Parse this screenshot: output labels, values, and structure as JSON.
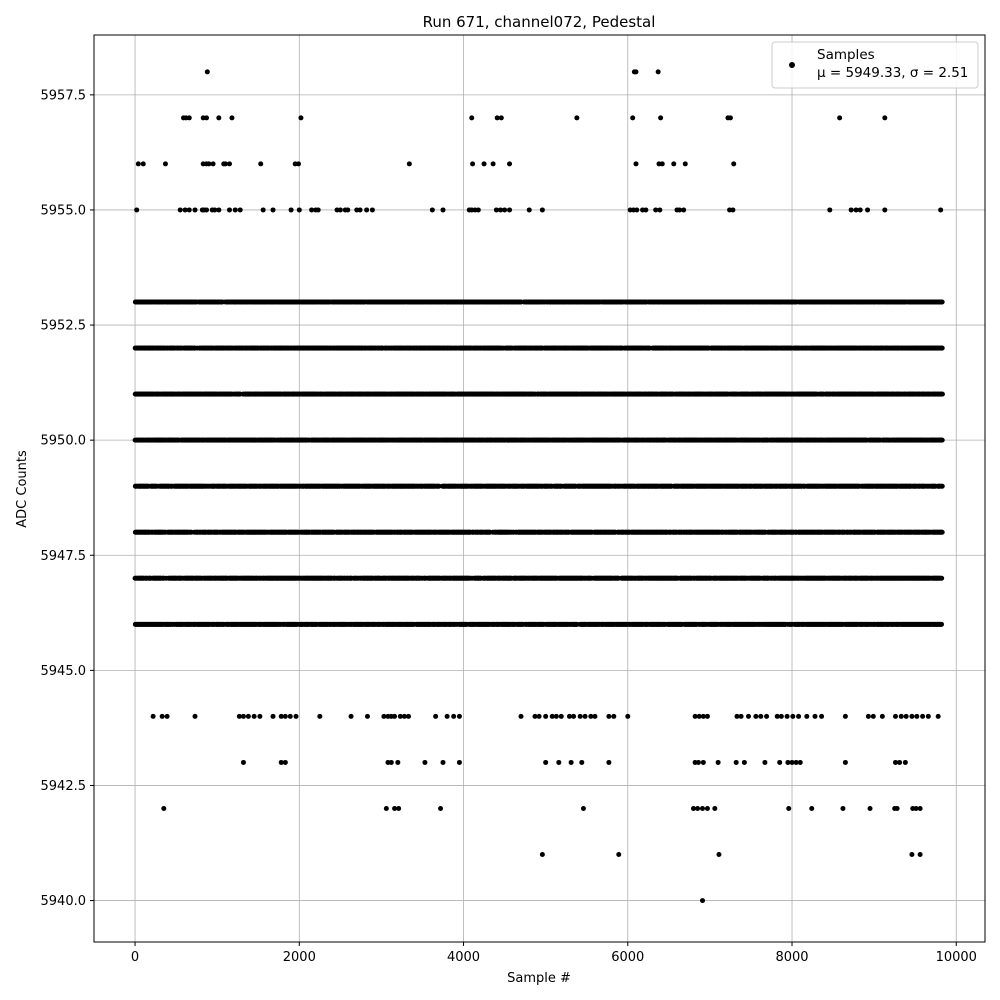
{
  "chart_data": {
    "type": "scatter",
    "title": "Run 671, channel072, Pedestal",
    "xlabel": "Sample #",
    "ylabel": "ADC Counts",
    "xlim": [
      -500,
      10350
    ],
    "ylim": [
      5939.1,
      5958.8
    ],
    "x_ticks": [
      0,
      2000,
      4000,
      6000,
      8000,
      10000
    ],
    "y_ticks": [
      5940.0,
      5942.5,
      5945.0,
      5947.5,
      5950.0,
      5952.5,
      5955.0,
      5957.5
    ],
    "x_tick_labels": [
      "0",
      "2000",
      "4000",
      "6000",
      "8000",
      "10000"
    ],
    "y_tick_labels": [
      "5940.0",
      "5942.5",
      "5945.0",
      "5947.5",
      "5950.0",
      "5952.5",
      "5955.0",
      "5957.5"
    ],
    "grid": true,
    "legend_position": "top-right",
    "series": [
      {
        "name": "Samples",
        "stats_label": "μ = 5949.33, σ = 2.51",
        "color": "#000000",
        "marker": "circle",
        "x_range": [
          0,
          9830
        ],
        "sample_count": 9830,
        "dense_levels": [
          5946,
          5947,
          5948,
          5949,
          5950,
          5951,
          5952,
          5953
        ],
        "sparse_points": {
          "5958": [
            880,
            6080,
            6100,
            6370
          ],
          "5957": [
            590,
            620,
            660,
            830,
            870,
            1020,
            1180,
            2020,
            4100,
            4410,
            4460,
            5380,
            6060,
            6400,
            7220,
            7250,
            8580,
            9130
          ],
          "5956": [
            40,
            100,
            370,
            830,
            870,
            900,
            950,
            1080,
            1100,
            1150,
            1530,
            1950,
            1990,
            3340,
            4110,
            4250,
            4360,
            4560,
            6100,
            6380,
            6420,
            6560,
            6700,
            7290
          ],
          "5955": [
            20,
            550,
            610,
            660,
            730,
            820,
            840,
            870,
            940,
            970,
            1020,
            1150,
            1220,
            1280,
            1560,
            1680,
            1900,
            2000,
            2150,
            2200,
            2230,
            2460,
            2500,
            2560,
            2590,
            2700,
            2740,
            2820,
            2890,
            3620,
            3750,
            4070,
            4100,
            4140,
            4180,
            4400,
            4450,
            4500,
            4560,
            4800,
            4960,
            6030,
            6070,
            6110,
            6180,
            6220,
            6340,
            6390,
            6600,
            6630,
            6680,
            7240,
            7280,
            8460,
            8720,
            8780,
            8830,
            8920,
            9130,
            9810
          ],
          "5944": [
            220,
            330,
            390,
            730,
            1270,
            1320,
            1380,
            1450,
            1520,
            1680,
            1780,
            1830,
            1890,
            1960,
            2250,
            2630,
            2830,
            3030,
            3080,
            3120,
            3160,
            3230,
            3280,
            3330,
            3660,
            3800,
            3880,
            3950,
            4700,
            4870,
            4920,
            5000,
            5080,
            5130,
            5190,
            5290,
            5340,
            5420,
            5480,
            5550,
            5600,
            5770,
            5830,
            6000,
            6820,
            6870,
            6920,
            6970,
            7330,
            7380,
            7470,
            7560,
            7620,
            7690,
            7820,
            7870,
            7940,
            8010,
            8080,
            8180,
            8280,
            8360,
            8650,
            8930,
            8990,
            9100,
            9260,
            9330,
            9390,
            9460,
            9520,
            9590,
            9660,
            9780
          ],
          "5943": [
            1320,
            1780,
            1830,
            3080,
            3120,
            3200,
            3530,
            3750,
            3950,
            5000,
            5160,
            5310,
            5440,
            5770,
            6820,
            6860,
            6920,
            7100,
            7320,
            7420,
            7670,
            7850,
            7950,
            8000,
            8050,
            8100,
            8650,
            9260,
            9310,
            9380
          ],
          "5942": [
            350,
            3060,
            3160,
            3210,
            3720,
            5460,
            6800,
            6850,
            6910,
            6970,
            7060,
            7960,
            8240,
            8620,
            8950,
            9250,
            9280,
            9470,
            9510,
            9560
          ],
          "5941": [
            4960,
            5890,
            7110,
            9460,
            9560
          ],
          "5940": [
            6910
          ]
        }
      }
    ]
  }
}
